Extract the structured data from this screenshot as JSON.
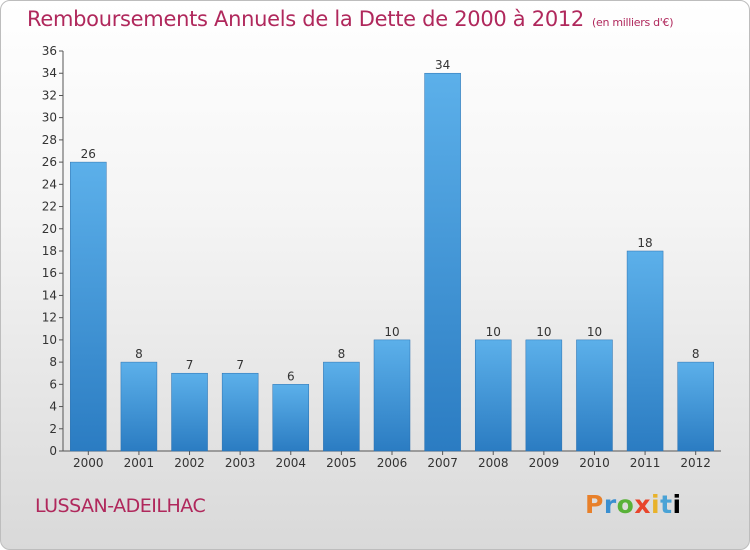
{
  "title": "Remboursements Annuels de la Dette de 2000 à 2012",
  "unit": "(en milliers d'€)",
  "town": "LUSSAN-ADEILHAC",
  "logo": [
    "P",
    "r",
    "o",
    "x",
    "i",
    "t",
    "i"
  ],
  "chart_data": {
    "type": "bar",
    "categories": [
      "2000",
      "2001",
      "2002",
      "2003",
      "2004",
      "2005",
      "2006",
      "2007",
      "2008",
      "2009",
      "2010",
      "2011",
      "2012"
    ],
    "values": [
      26,
      8,
      7,
      7,
      6,
      8,
      10,
      34,
      10,
      10,
      10,
      18,
      8
    ],
    "ylim": [
      0,
      36
    ],
    "ytick_step": 2,
    "grid": false,
    "bar_color": "#3d8fd6"
  }
}
